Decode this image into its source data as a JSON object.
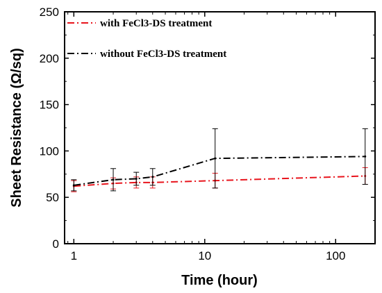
{
  "chart_data": {
    "type": "line",
    "xscale": "log",
    "xlim": [
      0.85,
      200
    ],
    "ylim": [
      0,
      250
    ],
    "xticks": [
      1,
      10,
      100
    ],
    "xtick_labels": [
      "1",
      "10",
      "100"
    ],
    "yticks": [
      0,
      50,
      100,
      150,
      200,
      250
    ],
    "ytick_labels": [
      "0",
      "50",
      "100",
      "150",
      "200",
      "250"
    ],
    "xlabel": "Time (hour)",
    "ylabel": "Sheet Resistance (Ω/sq)",
    "legend_position": "top-left",
    "grid": false,
    "series": [
      {
        "name": "with FeCl3-DS treatment",
        "color": "#e8141c",
        "x": [
          1,
          2,
          3,
          4,
          12,
          168
        ],
        "y": [
          62,
          65,
          66,
          66,
          68,
          73
        ],
        "err": [
          6,
          6,
          6,
          6,
          8,
          9
        ]
      },
      {
        "name": "without FeCl3-DS treatment",
        "color": "#000000",
        "x": [
          1,
          2,
          3,
          4,
          12,
          168
        ],
        "y": [
          63,
          69,
          70,
          72,
          92,
          94
        ],
        "err": [
          6,
          12,
          7,
          9,
          32,
          30
        ]
      }
    ]
  }
}
